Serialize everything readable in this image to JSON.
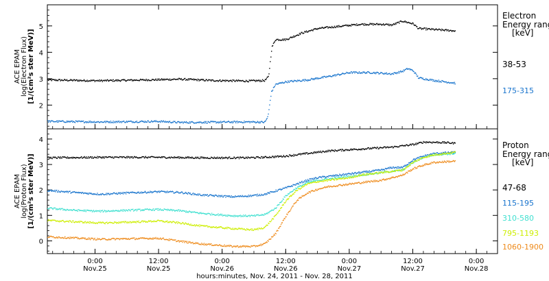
{
  "xaxis": {
    "title": "hours:minutes, Nov. 24, 2011 - Nov. 28, 2011",
    "ticks": [
      {
        "time": "0:00",
        "date": "Nov.25",
        "hour": 24
      },
      {
        "time": "12:00",
        "date": "Nov.25",
        "hour": 36
      },
      {
        "time": "0:00",
        "date": "Nov.26",
        "hour": 48
      },
      {
        "time": "12:00",
        "date": "Nov.26",
        "hour": 60
      },
      {
        "time": "0:00",
        "date": "Nov.27",
        "hour": 72
      },
      {
        "time": "12:00",
        "date": "Nov.27",
        "hour": 84
      },
      {
        "time": "0:00",
        "date": "Nov.28",
        "hour": 96
      }
    ]
  },
  "chart_data": [
    {
      "type": "scatter",
      "instrument": "ACE EPAM",
      "ylabel_line1": "ACE EPAM",
      "ylabel_line2": "log(Electron Flux)",
      "ylabel_line3": "[1/(cm²s ster MeV)]",
      "xlim_hours": [
        15,
        100
      ],
      "ylim": [
        1.1,
        5.8
      ],
      "yticks": [
        2,
        3,
        4,
        5
      ],
      "legend_title_line1": "Electron",
      "legend_title_line2": "Energy ranges",
      "legend_unit": "[keV]",
      "series": [
        {
          "name": "38-53",
          "color": "#000000",
          "points": [
            [
              15,
              2.97
            ],
            [
              25,
              2.94
            ],
            [
              36,
              2.98
            ],
            [
              40,
              3.0
            ],
            [
              46,
              2.95
            ],
            [
              53,
              2.93
            ],
            [
              56,
              2.95
            ],
            [
              56.7,
              3.1
            ],
            [
              57.3,
              4.2
            ],
            [
              58,
              4.5
            ],
            [
              60,
              4.5
            ],
            [
              63,
              4.75
            ],
            [
              66,
              4.92
            ],
            [
              70,
              5.0
            ],
            [
              74,
              5.08
            ],
            [
              78,
              5.08
            ],
            [
              80,
              5.05
            ],
            [
              82,
              5.2
            ],
            [
              84,
              5.1
            ],
            [
              85,
              4.92
            ],
            [
              88,
              4.88
            ],
            [
              92,
              4.83
            ]
          ]
        },
        {
          "name": "175-315",
          "color": "#1874cd",
          "points": [
            [
              15,
              1.4
            ],
            [
              25,
              1.38
            ],
            [
              36,
              1.4
            ],
            [
              40,
              1.36
            ],
            [
              46,
              1.37
            ],
            [
              53,
              1.38
            ],
            [
              56,
              1.37
            ],
            [
              56.6,
              1.6
            ],
            [
              57.2,
              2.5
            ],
            [
              58,
              2.8
            ],
            [
              60,
              2.9
            ],
            [
              64,
              2.97
            ],
            [
              68,
              3.1
            ],
            [
              72,
              3.25
            ],
            [
              76,
              3.25
            ],
            [
              80,
              3.2
            ],
            [
              82,
              3.3
            ],
            [
              83,
              3.4
            ],
            [
              84,
              3.32
            ],
            [
              85,
              3.05
            ],
            [
              88,
              2.95
            ],
            [
              92,
              2.85
            ]
          ]
        }
      ]
    },
    {
      "type": "scatter",
      "instrument": "ACE EPAM",
      "ylabel_line1": "ACE EPAM",
      "ylabel_line2": "log(Proton Flux)",
      "ylabel_line3": "[1/(cm²s ster MeV)]",
      "xlim_hours": [
        15,
        100
      ],
      "ylim": [
        -0.5,
        4.4
      ],
      "yticks": [
        0,
        1,
        2,
        3,
        4
      ],
      "legend_title_line1": "Proton",
      "legend_title_line2": "Energy ranges",
      "legend_unit": "[keV]",
      "series": [
        {
          "name": "47-68",
          "color": "#000000",
          "points": [
            [
              15,
              3.28
            ],
            [
              25,
              3.3
            ],
            [
              36,
              3.3
            ],
            [
              45,
              3.28
            ],
            [
              52,
              3.28
            ],
            [
              56,
              3.3
            ],
            [
              60,
              3.35
            ],
            [
              64,
              3.45
            ],
            [
              68,
              3.55
            ],
            [
              72,
              3.6
            ],
            [
              76,
              3.65
            ],
            [
              80,
              3.7
            ],
            [
              84,
              3.8
            ],
            [
              86,
              3.9
            ],
            [
              90,
              3.88
            ],
            [
              92,
              3.85
            ]
          ]
        },
        {
          "name": "115-195",
          "color": "#1874cd",
          "points": [
            [
              15,
              2.0
            ],
            [
              20,
              1.92
            ],
            [
              25,
              1.85
            ],
            [
              30,
              1.9
            ],
            [
              36,
              1.95
            ],
            [
              40,
              1.92
            ],
            [
              44,
              1.82
            ],
            [
              50,
              1.75
            ],
            [
              54,
              1.8
            ],
            [
              56,
              1.85
            ],
            [
              60,
              2.1
            ],
            [
              62,
              2.25
            ],
            [
              64,
              2.4
            ],
            [
              66,
              2.5
            ],
            [
              68,
              2.55
            ],
            [
              70,
              2.6
            ],
            [
              72,
              2.65
            ],
            [
              74,
              2.7
            ],
            [
              76,
              2.75
            ],
            [
              78,
              2.8
            ],
            [
              80,
              2.9
            ],
            [
              82,
              2.9
            ],
            [
              84,
              3.2
            ],
            [
              86,
              3.35
            ],
            [
              88,
              3.45
            ],
            [
              92,
              3.5
            ]
          ]
        },
        {
          "name": "310-580",
          "color": "#40e0d0",
          "points": [
            [
              15,
              1.3
            ],
            [
              20,
              1.22
            ],
            [
              25,
              1.18
            ],
            [
              30,
              1.22
            ],
            [
              36,
              1.25
            ],
            [
              40,
              1.2
            ],
            [
              44,
              1.1
            ],
            [
              50,
              1.0
            ],
            [
              54,
              1.0
            ],
            [
              56,
              1.05
            ],
            [
              58,
              1.3
            ],
            [
              60,
              1.8
            ],
            [
              62,
              2.1
            ],
            [
              64,
              2.3
            ],
            [
              66,
              2.4
            ],
            [
              68,
              2.45
            ],
            [
              70,
              2.5
            ],
            [
              72,
              2.55
            ],
            [
              74,
              2.6
            ],
            [
              76,
              2.65
            ],
            [
              78,
              2.7
            ],
            [
              80,
              2.75
            ],
            [
              82,
              2.8
            ],
            [
              84,
              3.1
            ],
            [
              86,
              3.3
            ],
            [
              88,
              3.4
            ],
            [
              92,
              3.45
            ]
          ]
        },
        {
          "name": "795-1193",
          "color": "#cdee00",
          "points": [
            [
              15,
              0.82
            ],
            [
              20,
              0.77
            ],
            [
              25,
              0.72
            ],
            [
              30,
              0.75
            ],
            [
              36,
              0.8
            ],
            [
              40,
              0.72
            ],
            [
              44,
              0.6
            ],
            [
              50,
              0.5
            ],
            [
              54,
              0.45
            ],
            [
              56,
              0.55
            ],
            [
              58,
              1.0
            ],
            [
              60,
              1.6
            ],
            [
              62,
              2.0
            ],
            [
              64,
              2.25
            ],
            [
              66,
              2.35
            ],
            [
              68,
              2.4
            ],
            [
              70,
              2.45
            ],
            [
              72,
              2.5
            ],
            [
              74,
              2.6
            ],
            [
              76,
              2.65
            ],
            [
              78,
              2.7
            ],
            [
              80,
              2.75
            ],
            [
              82,
              2.8
            ],
            [
              84,
              3.1
            ],
            [
              86,
              3.3
            ],
            [
              88,
              3.4
            ],
            [
              92,
              3.5
            ]
          ]
        },
        {
          "name": "1060-1900",
          "color": "#ee8a1a",
          "points": [
            [
              15,
              0.18
            ],
            [
              20,
              0.13
            ],
            [
              25,
              0.08
            ],
            [
              30,
              0.1
            ],
            [
              36,
              0.12
            ],
            [
              40,
              0.0
            ],
            [
              44,
              -0.1
            ],
            [
              50,
              -0.2
            ],
            [
              54,
              -0.2
            ],
            [
              56,
              -0.1
            ],
            [
              58,
              0.3
            ],
            [
              60,
              1.0
            ],
            [
              62,
              1.6
            ],
            [
              64,
              1.9
            ],
            [
              66,
              2.05
            ],
            [
              68,
              2.15
            ],
            [
              70,
              2.2
            ],
            [
              72,
              2.25
            ],
            [
              74,
              2.3
            ],
            [
              76,
              2.35
            ],
            [
              78,
              2.4
            ],
            [
              80,
              2.5
            ],
            [
              82,
              2.6
            ],
            [
              84,
              2.85
            ],
            [
              86,
              3.0
            ],
            [
              88,
              3.1
            ],
            [
              92,
              3.15
            ]
          ]
        }
      ]
    }
  ]
}
